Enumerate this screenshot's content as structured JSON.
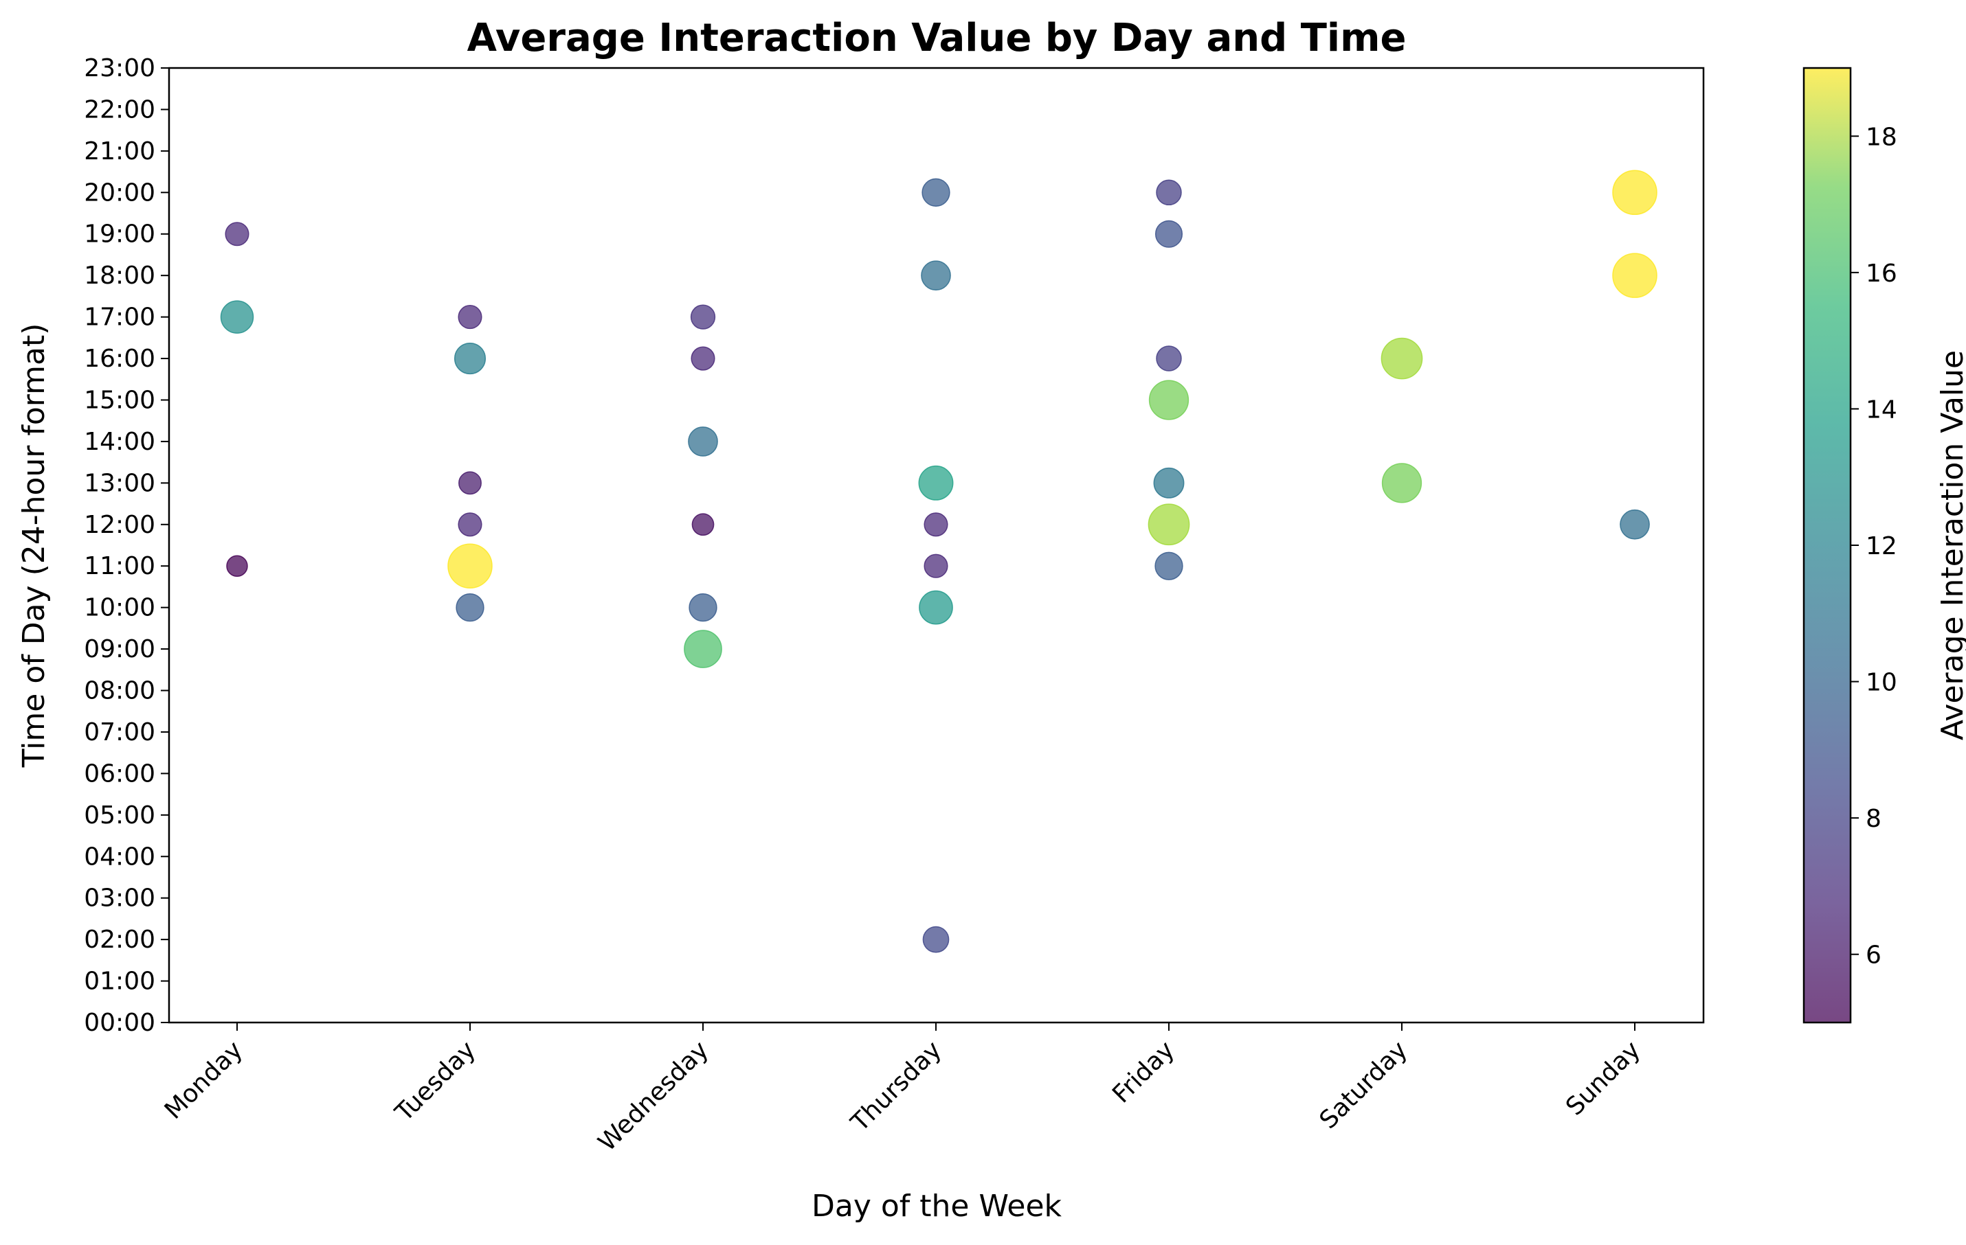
{
  "chart_data": {
    "type": "scatter",
    "title": "Average Interaction Value by Day and Time",
    "xlabel": "Day of the Week",
    "ylabel": "Time of Day (24-hour format)",
    "categories": [
      "Monday",
      "Tuesday",
      "Wednesday",
      "Thursday",
      "Friday",
      "Saturday",
      "Sunday"
    ],
    "y_ticks": [
      "00:00",
      "01:00",
      "02:00",
      "03:00",
      "04:00",
      "05:00",
      "06:00",
      "07:00",
      "08:00",
      "09:00",
      "10:00",
      "11:00",
      "12:00",
      "13:00",
      "14:00",
      "15:00",
      "16:00",
      "17:00",
      "18:00",
      "19:00",
      "20:00",
      "21:00",
      "22:00",
      "23:00"
    ],
    "ylim": [
      0,
      23
    ],
    "colorbar": {
      "label": "Average Interaction Value",
      "colormap": "viridis",
      "range": [
        5,
        19
      ],
      "ticks": [
        6,
        8,
        10,
        12,
        14,
        16,
        18
      ]
    },
    "point_size_encodes": "Average Interaction Value",
    "points": [
      {
        "day": "Monday",
        "hour": 19,
        "value": 6.5
      },
      {
        "day": "Monday",
        "hour": 17,
        "value": 12
      },
      {
        "day": "Monday",
        "hour": 11,
        "value": 5
      },
      {
        "day": "Tuesday",
        "hour": 17,
        "value": 6.5
      },
      {
        "day": "Tuesday",
        "hour": 16,
        "value": 11
      },
      {
        "day": "Tuesday",
        "hour": 13,
        "value": 6
      },
      {
        "day": "Tuesday",
        "hour": 12,
        "value": 6.5
      },
      {
        "day": "Tuesday",
        "hour": 11,
        "value": 19
      },
      {
        "day": "Tuesday",
        "hour": 10,
        "value": 9
      },
      {
        "day": "Wednesday",
        "hour": 17,
        "value": 7
      },
      {
        "day": "Wednesday",
        "hour": 16,
        "value": 6.5
      },
      {
        "day": "Wednesday",
        "hour": 14,
        "value": 10
      },
      {
        "day": "Wednesday",
        "hour": 12,
        "value": 5.5
      },
      {
        "day": "Wednesday",
        "hour": 10,
        "value": 9
      },
      {
        "day": "Wednesday",
        "hour": 9,
        "value": 15
      },
      {
        "day": "Thursday",
        "hour": 20,
        "value": 9
      },
      {
        "day": "Thursday",
        "hour": 18,
        "value": 10
      },
      {
        "day": "Thursday",
        "hour": 13,
        "value": 13
      },
      {
        "day": "Thursday",
        "hour": 12,
        "value": 6.5
      },
      {
        "day": "Thursday",
        "hour": 11,
        "value": 6.5
      },
      {
        "day": "Thursday",
        "hour": 10,
        "value": 12.5
      },
      {
        "day": "Thursday",
        "hour": 2,
        "value": 8
      },
      {
        "day": "Friday",
        "hour": 20,
        "value": 7.5
      },
      {
        "day": "Friday",
        "hour": 19,
        "value": 8.5
      },
      {
        "day": "Friday",
        "hour": 16,
        "value": 7.5
      },
      {
        "day": "Friday",
        "hour": 15,
        "value": 16
      },
      {
        "day": "Friday",
        "hour": 13,
        "value": 10.5
      },
      {
        "day": "Friday",
        "hour": 12,
        "value": 17
      },
      {
        "day": "Friday",
        "hour": 11,
        "value": 9
      },
      {
        "day": "Saturday",
        "hour": 16,
        "value": 17
      },
      {
        "day": "Saturday",
        "hour": 13,
        "value": 16
      },
      {
        "day": "Sunday",
        "hour": 20,
        "value": 19
      },
      {
        "day": "Sunday",
        "hour": 18,
        "value": 19
      },
      {
        "day": "Sunday",
        "hour": 12,
        "value": 10
      }
    ],
    "grid": false,
    "legend": "none"
  }
}
